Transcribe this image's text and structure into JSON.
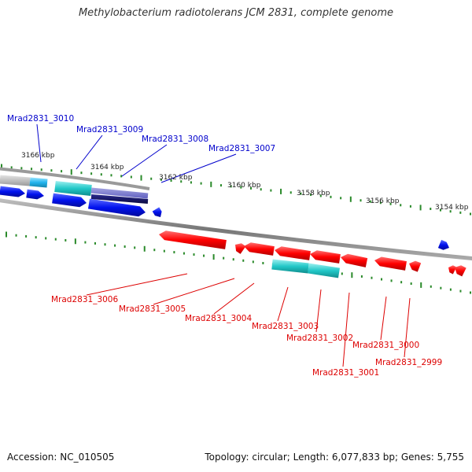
{
  "title": "Methylobacterium radiotolerans JCM 2831, complete genome",
  "footer": {
    "accession": "Accession: NC_010505",
    "stats": "Topology: circular; Length: 6,077,833 bp; Genes: 5,755"
  },
  "scale_labels": [
    "3166 kbp",
    "3164 kbp",
    "3162 kbp",
    "3160 kbp",
    "3158 kbp",
    "3156 kbp",
    "3154 kbp"
  ],
  "forward_genes": [
    "Mrad2831_3010",
    "Mrad2831_3009",
    "Mrad2831_3008",
    "Mrad2831_3007"
  ],
  "reverse_genes": [
    "Mrad2831_3006",
    "Mrad2831_3005",
    "Mrad2831_3004",
    "Mrad2831_3003",
    "Mrad2831_3002",
    "Mrad2831_3001",
    "Mrad2831_3000",
    "Mrad2831_2999"
  ],
  "colors": {
    "forward_label": "#0000cc",
    "reverse_label": "#dd0000",
    "forward_gene": "#0000ee",
    "reverse_gene": "#ff0000",
    "rna": "#22c8c8",
    "tick": "#2a8a2a",
    "backbone": "#888888"
  }
}
